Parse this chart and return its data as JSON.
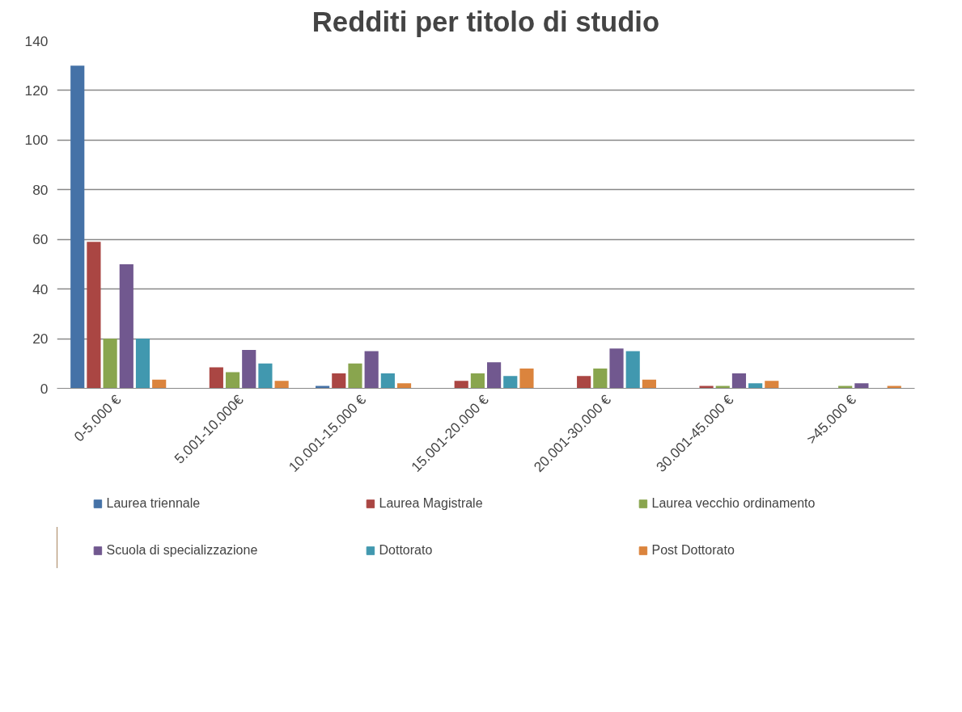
{
  "chart_data": {
    "type": "bar",
    "title": "Redditi per titolo di studio",
    "categories": [
      "0-5.000 €",
      "5.001-10.000€",
      "10.001-15.000 €",
      "15.001-20.000 €",
      "20.001-30.000 €",
      "30.001-45.000 €",
      ">45.000 €"
    ],
    "series": [
      {
        "name": "Laurea triennale",
        "color": "#4572a7",
        "values": [
          130,
          null,
          1,
          null,
          null,
          null,
          null
        ]
      },
      {
        "name": "Laurea Magistrale",
        "color": "#aa4643",
        "values": [
          59,
          8.5,
          6,
          3,
          5,
          1,
          null
        ]
      },
      {
        "name": "Laurea vecchio ordinamento",
        "color": "#89a54e",
        "values": [
          20,
          6.5,
          10,
          6,
          8,
          1,
          1
        ]
      },
      {
        "name": "Scuola di specializzazione",
        "color": "#71588f",
        "values": [
          50,
          15.5,
          15,
          10.5,
          16,
          6,
          2
        ]
      },
      {
        "name": "Dottorato",
        "color": "#4198af",
        "values": [
          20,
          10,
          6,
          5,
          15,
          2,
          null
        ]
      },
      {
        "name": "Post Dottorato",
        "color": "#db843d",
        "values": [
          3.5,
          3,
          2,
          8,
          3.5,
          3,
          1
        ]
      }
    ],
    "ylim": [
      0,
      140
    ],
    "yticks": [
      0,
      20,
      40,
      60,
      80,
      100,
      120,
      140
    ],
    "grid": "y",
    "legend": "bottom"
  }
}
